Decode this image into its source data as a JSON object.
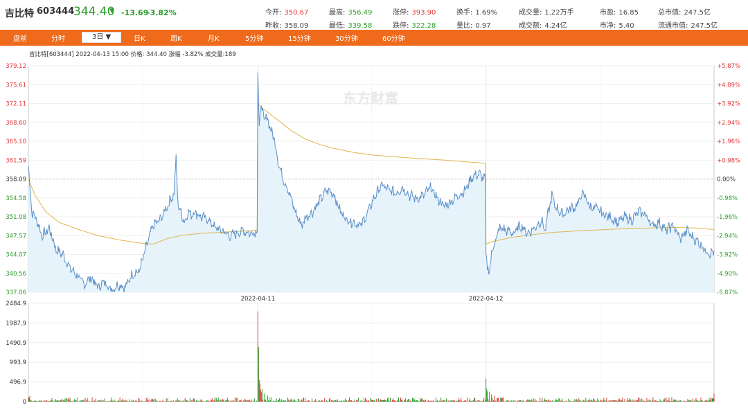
{
  "header": {
    "name": "吉比特",
    "code": "603444",
    "price": "344.40",
    "arrow": "▼",
    "change": "-13.69",
    "change_pct": "-3.82%"
  },
  "quote": [
    {
      "label": "今开:",
      "value": "350.67",
      "color": "red"
    },
    {
      "label": "最高:",
      "value": "356.49",
      "color": "green"
    },
    {
      "label": "涨停:",
      "value": "393.90",
      "color": "red"
    },
    {
      "label": "换手:",
      "value": "1.69%",
      "color": "dark"
    },
    {
      "label": "成交量:",
      "value": "1.22万手",
      "color": "dark"
    },
    {
      "label": "市盈:",
      "value": "16.85",
      "color": "dark"
    },
    {
      "label": "总市值:",
      "value": "247.5亿",
      "color": "dark"
    },
    {
      "label": "昨收:",
      "value": "358.09",
      "color": "dark"
    },
    {
      "label": "最低:",
      "value": "339.58",
      "color": "green"
    },
    {
      "label": "跌停:",
      "value": "322.28",
      "color": "green"
    },
    {
      "label": "量比:",
      "value": "0.97",
      "color": "dark"
    },
    {
      "label": "成交额:",
      "value": "4.24亿",
      "color": "dark"
    },
    {
      "label": "市净:",
      "value": "5.40",
      "color": "dark"
    },
    {
      "label": "流通市值:",
      "value": "247.5亿",
      "color": "dark"
    }
  ],
  "nav": {
    "items": [
      "盘前",
      "分时",
      "3日 ▼",
      "日K",
      "周K",
      "月K",
      "5分钟",
      "15分钟",
      "30分钟",
      "60分钟"
    ],
    "active_index": 2
  },
  "chart_data": [
    {
      "type": "line",
      "info_line": "吉比特[603444]  2022-04-13 15:00  价格: 344.40  涨幅 -3.82%  成交量:189",
      "watermark": "东方财富",
      "prev_close": 358.09,
      "ylim": [
        337.06,
        379.12
      ],
      "y_ticks": [
        "379.12",
        "375.61",
        "372.11",
        "368.60",
        "365.10",
        "361.59",
        "358.09",
        "354.58",
        "351.08",
        "347.57",
        "344.07",
        "340.56",
        "337.06"
      ],
      "y2_ticks": [
        "+5.87%",
        "+4.89%",
        "+3.92%",
        "+2.94%",
        "+1.96%",
        "+0.98%",
        "0.00%",
        "-0.98%",
        "-1.96%",
        "-2.94%",
        "-3.92%",
        "-4.90%",
        "-5.87%"
      ],
      "days": [
        "2022-04-11",
        "2022-04-12",
        "2022-04-13"
      ],
      "x_tick_labels": [
        "2022-04-11",
        "2022-04-12"
      ],
      "price_keypoints": [
        [
          0,
          360.5
        ],
        [
          5,
          352.0
        ],
        [
          12,
          350.5
        ],
        [
          20,
          347.5
        ],
        [
          30,
          349.0
        ],
        [
          40,
          345.0
        ],
        [
          50,
          344.0
        ],
        [
          60,
          341.5
        ],
        [
          70,
          340.2
        ],
        [
          80,
          338.5
        ],
        [
          90,
          339.8
        ],
        [
          100,
          338.0
        ],
        [
          110,
          339.0
        ],
        [
          120,
          337.5
        ],
        [
          130,
          338.5
        ],
        [
          140,
          338.0
        ],
        [
          150,
          340.5
        ],
        [
          160,
          341.0
        ],
        [
          170,
          345.5
        ],
        [
          180,
          349.5
        ],
        [
          190,
          350.5
        ],
        [
          200,
          353.0
        ],
        [
          210,
          355.5
        ],
        [
          213,
          362.0
        ],
        [
          216,
          353.0
        ],
        [
          220,
          352.0
        ],
        [
          225,
          350.0
        ],
        [
          230,
          352.0
        ],
        [
          235,
          351.5
        ],
        [
          240,
          352.0
        ],
        [
          250,
          351.0
        ],
        [
          260,
          350.5
        ],
        [
          270,
          349.0
        ],
        [
          280,
          348.5
        ],
        [
          290,
          347.5
        ],
        [
          300,
          348.0
        ],
        [
          310,
          348.5
        ],
        [
          320,
          348.0
        ],
        [
          330,
          348.5
        ],
        [
          331,
          378.0
        ],
        [
          333,
          368.0
        ],
        [
          336,
          372.0
        ],
        [
          340,
          369.0
        ],
        [
          345,
          369.5
        ],
        [
          350,
          367.0
        ],
        [
          355,
          365.5
        ],
        [
          360,
          361.5
        ],
        [
          365,
          359.0
        ],
        [
          370,
          357.5
        ],
        [
          375,
          356.0
        ],
        [
          380,
          354.0
        ],
        [
          385,
          352.0
        ],
        [
          390,
          350.5
        ],
        [
          395,
          349.5
        ],
        [
          400,
          351.0
        ],
        [
          410,
          352.0
        ],
        [
          420,
          354.0
        ],
        [
          430,
          356.0
        ],
        [
          440,
          355.5
        ],
        [
          450,
          352.0
        ],
        [
          460,
          350.5
        ],
        [
          470,
          350.0
        ],
        [
          480,
          349.5
        ],
        [
          490,
          352.0
        ],
        [
          500,
          355.0
        ],
        [
          510,
          357.0
        ],
        [
          520,
          356.0
        ],
        [
          530,
          355.5
        ],
        [
          540,
          356.5
        ],
        [
          550,
          355.0
        ],
        [
          560,
          354.5
        ],
        [
          570,
          355.0
        ],
        [
          580,
          356.5
        ],
        [
          590,
          354.5
        ],
        [
          600,
          353.0
        ],
        [
          610,
          354.0
        ],
        [
          620,
          355.0
        ],
        [
          630,
          356.0
        ],
        [
          640,
          358.5
        ],
        [
          650,
          359.0
        ],
        [
          659,
          358.0
        ],
        [
          660,
          344.0
        ],
        [
          662,
          342.0
        ],
        [
          665,
          340.5
        ],
        [
          668,
          344.5
        ],
        [
          672,
          346.0
        ],
        [
          680,
          349.0
        ],
        [
          690,
          348.5
        ],
        [
          700,
          348.0
        ],
        [
          710,
          349.5
        ],
        [
          720,
          348.0
        ],
        [
          730,
          349.0
        ],
        [
          740,
          350.5
        ],
        [
          745,
          348.5
        ],
        [
          750,
          352.0
        ],
        [
          755,
          355.0
        ],
        [
          760,
          353.0
        ],
        [
          770,
          351.5
        ],
        [
          780,
          352.5
        ],
        [
          790,
          353.0
        ],
        [
          800,
          355.5
        ],
        [
          810,
          353.0
        ],
        [
          820,
          352.5
        ],
        [
          830,
          351.5
        ],
        [
          840,
          351.0
        ],
        [
          850,
          350.0
        ],
        [
          860,
          351.0
        ],
        [
          870,
          350.5
        ],
        [
          880,
          352.0
        ],
        [
          890,
          351.5
        ],
        [
          900,
          349.5
        ],
        [
          910,
          350.0
        ],
        [
          920,
          348.5
        ],
        [
          930,
          349.5
        ],
        [
          940,
          347.0
        ],
        [
          950,
          348.5
        ],
        [
          960,
          347.0
        ],
        [
          970,
          346.0
        ],
        [
          975,
          345.0
        ],
        [
          980,
          344.5
        ],
        [
          989,
          344.4
        ]
      ],
      "avg_keypoints": [
        [
          0,
          358.0
        ],
        [
          10,
          355.0
        ],
        [
          25,
          352.0
        ],
        [
          45,
          350.0
        ],
        [
          70,
          348.8
        ],
        [
          100,
          347.6
        ],
        [
          130,
          346.8
        ],
        [
          160,
          346.2
        ],
        [
          180,
          346.0
        ],
        [
          200,
          347.0
        ],
        [
          220,
          347.6
        ],
        [
          250,
          348.0
        ],
        [
          280,
          348.2
        ],
        [
          310,
          348.4
        ],
        [
          330,
          348.6
        ],
        [
          331,
          372.0
        ],
        [
          340,
          371.0
        ],
        [
          360,
          369.0
        ],
        [
          380,
          367.0
        ],
        [
          400,
          365.5
        ],
        [
          420,
          364.5
        ],
        [
          440,
          363.8
        ],
        [
          470,
          363.0
        ],
        [
          500,
          362.5
        ],
        [
          550,
          362.0
        ],
        [
          600,
          361.6
        ],
        [
          659,
          361.0
        ],
        [
          660,
          346.0
        ],
        [
          670,
          346.5
        ],
        [
          700,
          347.3
        ],
        [
          730,
          347.8
        ],
        [
          760,
          348.2
        ],
        [
          800,
          348.5
        ],
        [
          850,
          348.8
        ],
        [
          900,
          349.0
        ],
        [
          930,
          349.1
        ],
        [
          960,
          349.0
        ],
        [
          989,
          348.7
        ]
      ]
    },
    {
      "type": "bar",
      "ylim": [
        0,
        2484.9
      ],
      "y_ticks": [
        "2484.9",
        "1987.9",
        "1490.9",
        "993.9",
        "496.9",
        "0"
      ],
      "volume_peaks": [
        [
          0,
          120
        ],
        [
          1,
          90
        ],
        [
          2,
          140
        ],
        [
          110,
          80
        ],
        [
          170,
          90
        ],
        [
          331,
          2280
        ],
        [
          332,
          1380
        ],
        [
          333,
          550
        ],
        [
          334,
          460
        ],
        [
          335,
          300
        ],
        [
          336,
          240
        ],
        [
          337,
          320
        ],
        [
          340,
          200
        ],
        [
          345,
          150
        ],
        [
          350,
          120
        ],
        [
          660,
          580
        ],
        [
          661,
          330
        ],
        [
          662,
          260
        ],
        [
          665,
          240
        ],
        [
          668,
          180
        ],
        [
          672,
          140
        ],
        [
          989,
          200
        ]
      ]
    }
  ]
}
